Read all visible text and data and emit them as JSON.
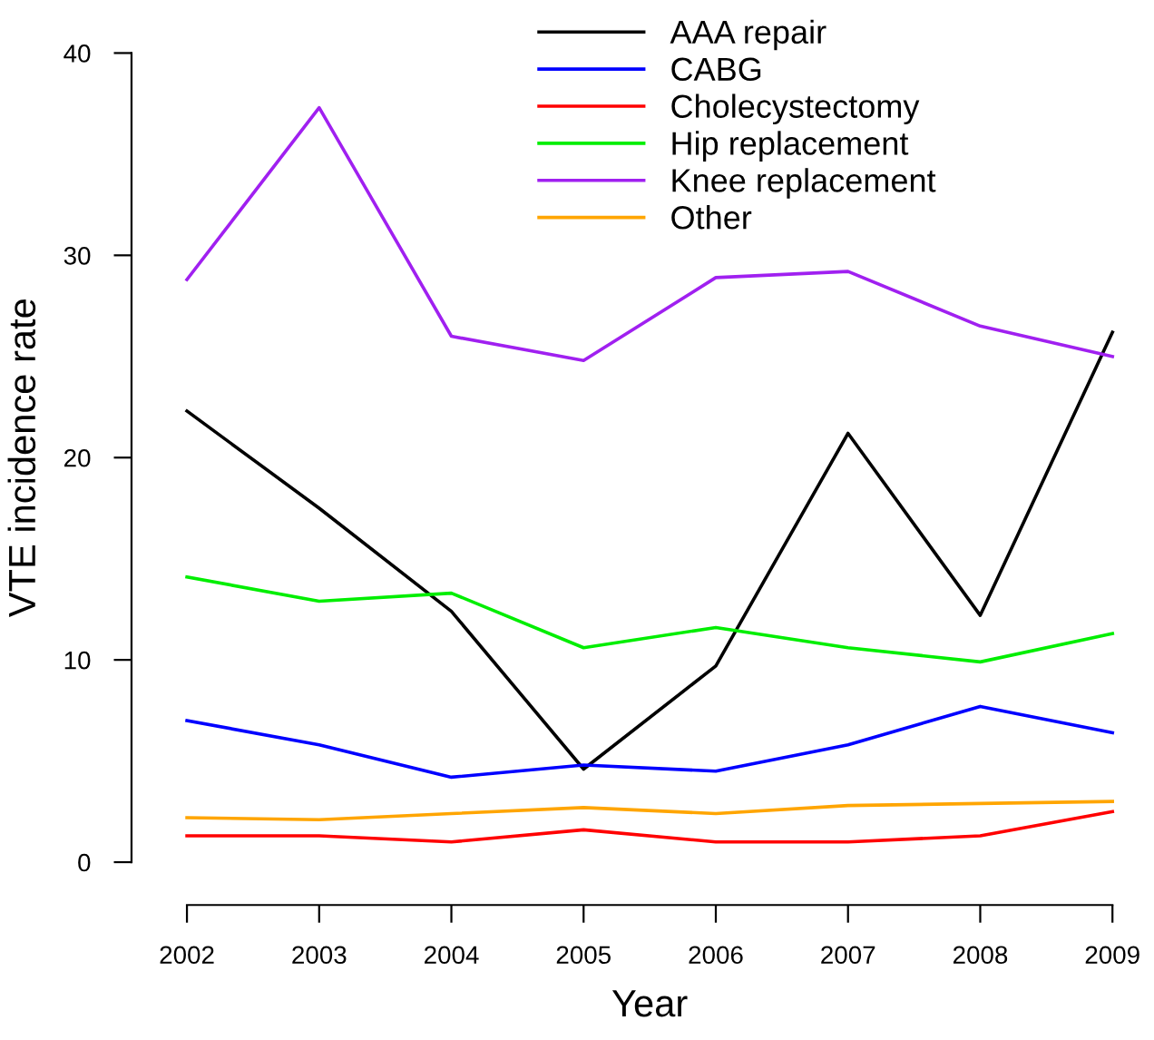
{
  "chart_data": {
    "type": "line",
    "xlabel": "Year",
    "ylabel": "VTE incidence rate",
    "x": [
      2002,
      2003,
      2004,
      2005,
      2006,
      2007,
      2008,
      2009
    ],
    "xlim": [
      2002,
      2009
    ],
    "ylim": [
      0,
      40
    ],
    "xticks": [
      2002,
      2003,
      2004,
      2005,
      2006,
      2007,
      2008,
      2009
    ],
    "yticks": [
      0,
      10,
      20,
      30,
      40
    ],
    "grid": false,
    "legend": "top right",
    "marker": "none",
    "line_style": "solid",
    "series": [
      {
        "name": "AAA repair",
        "color": "#000000",
        "values": [
          22.3,
          17.5,
          12.4,
          4.6,
          9.7,
          21.2,
          12.2,
          26.2
        ]
      },
      {
        "name": "CABG",
        "color": "#0000ff",
        "values": [
          7.0,
          5.8,
          4.2,
          4.8,
          4.5,
          5.8,
          7.7,
          6.4
        ]
      },
      {
        "name": "Cholecystectomy",
        "color": "#ff0000",
        "values": [
          1.3,
          1.3,
          1.0,
          1.6,
          1.0,
          1.0,
          1.3,
          2.5
        ]
      },
      {
        "name": "Hip replacement",
        "color": "#00ee00",
        "values": [
          14.1,
          12.9,
          13.3,
          10.6,
          11.6,
          10.6,
          9.9,
          11.3
        ]
      },
      {
        "name": "Knee replacement",
        "color": "#a020f0",
        "values": [
          28.8,
          37.3,
          26.0,
          24.8,
          28.9,
          29.2,
          26.5,
          25.0
        ]
      },
      {
        "name": "Other",
        "color": "#ffa500",
        "values": [
          2.2,
          2.1,
          2.4,
          2.7,
          2.4,
          2.8,
          2.9,
          3.0
        ]
      }
    ]
  }
}
